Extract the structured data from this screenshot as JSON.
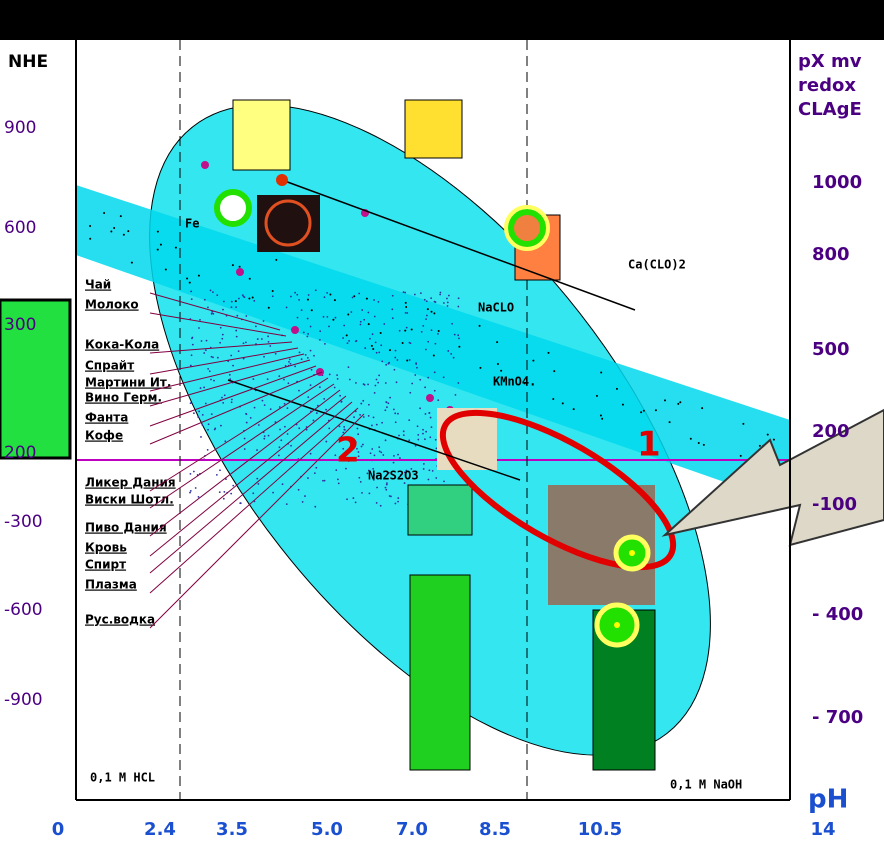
{
  "left_axis": {
    "title": "NHE",
    "labels": [
      "900",
      "600",
      "300",
      "200",
      "-300",
      "-600",
      "-900"
    ]
  },
  "right_axis": {
    "title_lines": [
      "pX mv",
      "redox",
      "CLAgE"
    ],
    "labels": [
      "1000",
      "800",
      "500",
      "200",
      "-100",
      "- 400",
      "- 700"
    ],
    "unit": "pH"
  },
  "bottom_axis": {
    "labels": [
      "0",
      "2.4",
      "3.5",
      "5.0",
      "7.0",
      "8.5",
      "10.5",
      "14"
    ]
  },
  "annotations": {
    "fe": "Fe",
    "naclo": "NaCLO",
    "caclo2": "Ca(CLO)2",
    "kmno4": "KMnO4.",
    "na2s2o3": "Na2S2O3",
    "hcl": "0,1 M HCL",
    "naoh": "0,1 M NaOH",
    "region1": "1",
    "region2": "2"
  },
  "drinks": [
    "Чай",
    "Молоко",
    "Кока-Кола",
    "Спрайт",
    "Мартини Ит.",
    "Вино Герм.",
    "Фанта",
    "Кофе",
    "Ликер Дания",
    "Виски Шотл.",
    "Пиво Дания",
    "Кровь",
    "Спирт",
    "Плазма",
    "Рус.водка"
  ]
}
